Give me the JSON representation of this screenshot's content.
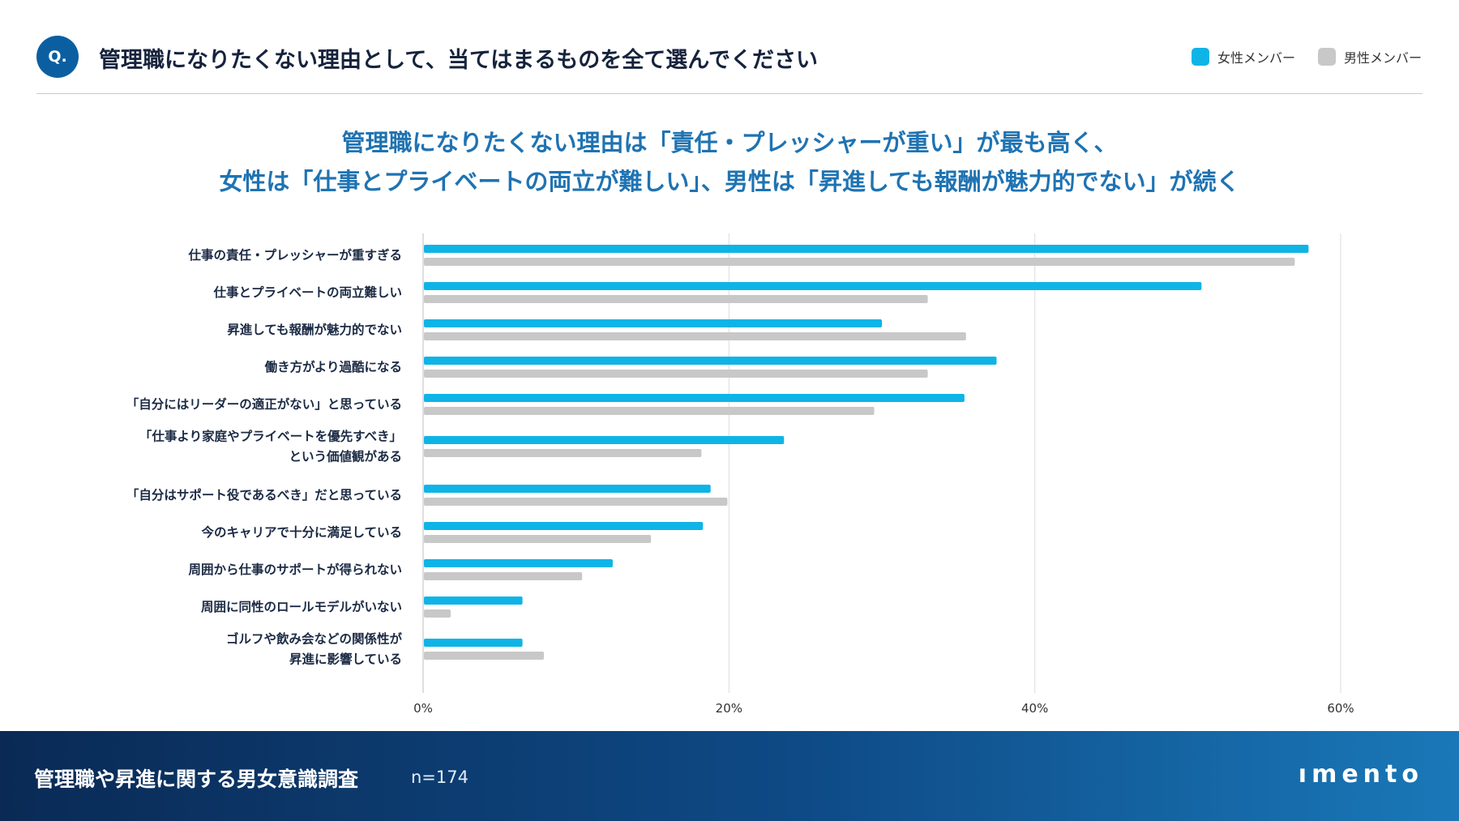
{
  "header": {
    "badge": "Q.",
    "question": "管理職になりたくない理由として、当てはまるものを全て選んでください"
  },
  "legend": [
    {
      "label": "女性メンバー",
      "color": "#0fb4e6"
    },
    {
      "label": "男性メンバー",
      "color": "#c8c8c8"
    }
  ],
  "headline": {
    "line1": "管理職になりたくない理由は「責任・プレッシャーが重い」が最も高く、",
    "line2": "女性は「仕事とプライベートの両立が難しい」、男性は「昇進しても報酬が魅力的でない」が続く"
  },
  "chart_data": {
    "type": "bar",
    "orientation": "horizontal",
    "categories": [
      [
        "仕事の責任・プレッシャーが重すぎる"
      ],
      [
        "仕事とプライベートの両立難しい"
      ],
      [
        "昇進しても報酬が魅力的でない"
      ],
      [
        "働き方がより過酷になる"
      ],
      [
        "「自分にはリーダーの適正がない」と思っている"
      ],
      [
        "「仕事より家庭やプライベートを優先すべき」",
        "という価値観がある"
      ],
      [
        "「自分はサポート役であるべき」だと思っている"
      ],
      [
        "今のキャリアで十分に満足している"
      ],
      [
        "周囲から仕事のサポートが得られない"
      ],
      [
        "周囲に同性のロールモデルがいない"
      ],
      [
        "ゴルフや飲み会などの関係性が",
        "昇進に影響している"
      ]
    ],
    "series": [
      {
        "name": "女性メンバー",
        "color": "#0fb4e6",
        "values": [
          57.9,
          50.9,
          30.0,
          37.5,
          35.4,
          23.6,
          18.8,
          18.3,
          12.4,
          6.5,
          6.5
        ]
      },
      {
        "name": "男性メンバー",
        "color": "#c8c8c8",
        "values": [
          57.0,
          33.0,
          35.5,
          33.0,
          29.5,
          18.2,
          19.9,
          14.9,
          10.4,
          1.8,
          7.9
        ]
      }
    ],
    "xlim": [
      0,
      60
    ],
    "xticks": [
      0,
      20,
      40,
      60
    ],
    "xtick_labels": [
      "0%",
      "20%",
      "40%",
      "60%"
    ],
    "grid": true
  },
  "footer": {
    "survey_title": "管理職や昇進に関する男女意識調査",
    "sample": "n=174",
    "logo": "ımento"
  }
}
